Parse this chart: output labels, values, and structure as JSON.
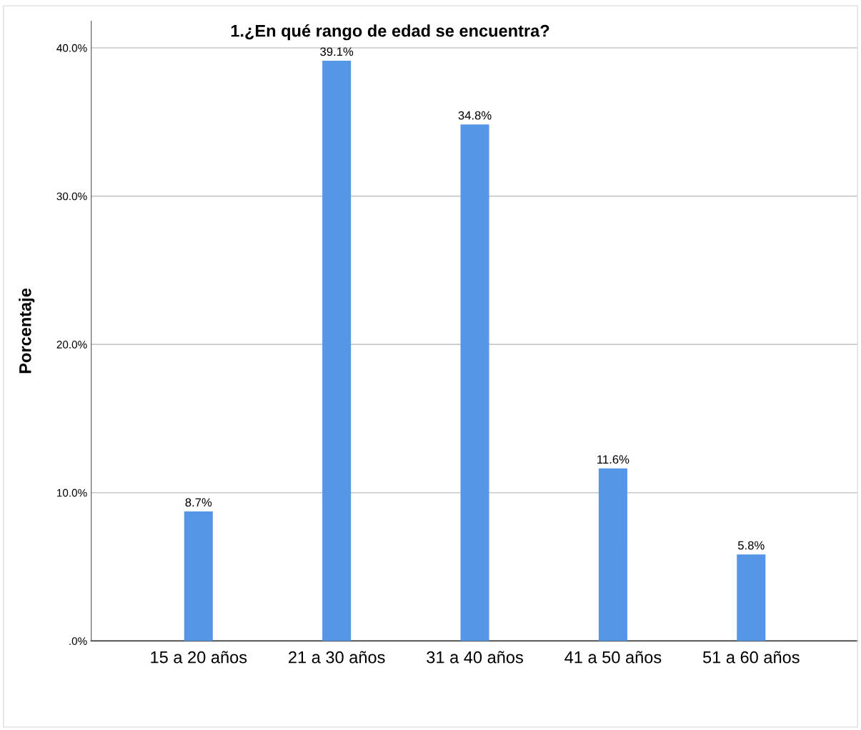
{
  "chart_data": {
    "type": "bar",
    "title": "1.¿En qué rango de edad se encuentra?",
    "ylabel": "Porcentaje",
    "categories": [
      "15 a 20 años",
      "21 a 30 años",
      "31 a 40 años",
      "41 a 50 años",
      "51 a 60 años"
    ],
    "values": [
      8.7,
      39.1,
      34.8,
      11.6,
      5.8
    ],
    "value_labels": [
      "8.7%",
      "39.1%",
      "34.8%",
      "11.6%",
      "5.8%"
    ],
    "color": "#5596e6",
    "ylim": [
      0,
      41.8
    ],
    "yticks": [
      {
        "value": 0,
        "label": ".0%"
      },
      {
        "value": 10,
        "label": "10.0%"
      },
      {
        "value": 20,
        "label": "20.0%"
      },
      {
        "value": 30,
        "label": "30.0%"
      },
      {
        "value": 40,
        "label": "40.0%"
      }
    ],
    "grid": "y"
  }
}
